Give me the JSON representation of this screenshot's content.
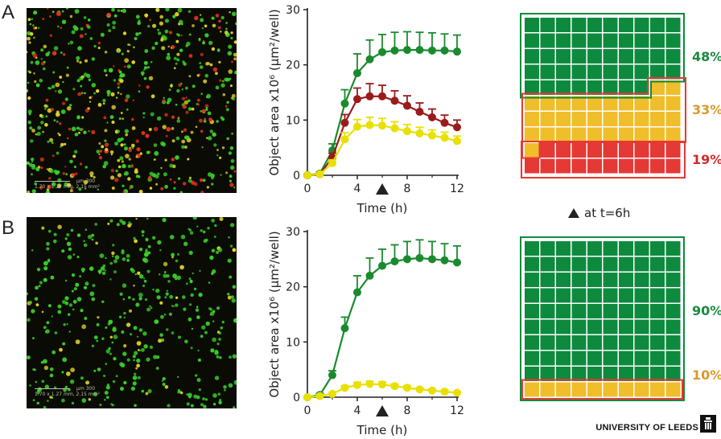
{
  "panels": [
    {
      "letter": "A"
    },
    {
      "letter": "B"
    }
  ],
  "micrographs": [
    {
      "scale_unit": "µm",
      "scale_value": "300",
      "size_text": "1.70 x 1.27 mm, 2.15 mm²",
      "density": 620,
      "ratio": {
        "green": 0.48,
        "yellow": 0.33,
        "red": 0.19
      }
    },
    {
      "scale_unit": "µm",
      "scale_value": "300",
      "size_text": "1.70 x 1.27 mm, 2.15 mm²",
      "density": 430,
      "ratio": {
        "green": 0.9,
        "yellow": 0.1,
        "red": 0.0
      }
    }
  ],
  "chart_data": [
    {
      "type": "line",
      "xlabel": "Time (h)",
      "ylabel": "Object area x10⁶ (µm²/well)",
      "xlim": [
        0,
        12
      ],
      "ylim": [
        0,
        30
      ],
      "xticks": [
        0,
        4,
        8,
        12
      ],
      "yticks": [
        0,
        10,
        20,
        30
      ],
      "marker_time": 6,
      "x": [
        0,
        1,
        2,
        3,
        4,
        5,
        6,
        7,
        8,
        9,
        10,
        11,
        12
      ],
      "series": [
        {
          "color": "#1a8a2e",
          "values": [
            0,
            0.3,
            4.5,
            13,
            18.5,
            21,
            22.3,
            22.6,
            22.7,
            22.7,
            22.6,
            22.6,
            22.4
          ],
          "errors": [
            0,
            0.3,
            1.2,
            2.5,
            3.5,
            3.5,
            3.2,
            3.3,
            3.3,
            3.2,
            3.2,
            3.0,
            3.0
          ]
        },
        {
          "color": "#9b1a1a",
          "values": [
            0,
            0.2,
            3.2,
            9.5,
            13.8,
            14.3,
            14.3,
            13.5,
            12.6,
            11.5,
            10.5,
            9.5,
            8.7
          ],
          "errors": [
            0,
            0.2,
            0.8,
            1.5,
            2.0,
            2.3,
            2.0,
            1.8,
            1.8,
            1.6,
            1.5,
            1.4,
            1.3
          ]
        },
        {
          "color": "#e8e000",
          "values": [
            0,
            0.2,
            2.2,
            6.5,
            8.8,
            9.1,
            9.0,
            8.5,
            8.0,
            7.6,
            7.2,
            6.8,
            6.2
          ],
          "errors": [
            0,
            0.2,
            0.6,
            1.2,
            1.3,
            1.4,
            1.3,
            1.2,
            1.2,
            1.1,
            1.0,
            1.0,
            0.9
          ]
        }
      ]
    },
    {
      "type": "line",
      "xlabel": "Time (h)",
      "ylabel": "Object area x10⁶ (µm²/well)",
      "xlim": [
        0,
        12
      ],
      "ylim": [
        0,
        30
      ],
      "xticks": [
        0,
        4,
        8,
        12
      ],
      "yticks": [
        0,
        10,
        20,
        30
      ],
      "marker_time": 6,
      "x": [
        0,
        1,
        2,
        3,
        4,
        5,
        6,
        7,
        8,
        9,
        10,
        11,
        12
      ],
      "series": [
        {
          "color": "#1a8a2e",
          "values": [
            0,
            0.4,
            4.0,
            12.5,
            19.0,
            22.0,
            23.8,
            24.6,
            25.0,
            25.2,
            25.0,
            24.8,
            24.4
          ],
          "errors": [
            0,
            0.3,
            0.8,
            2.0,
            3.0,
            3.2,
            3.0,
            3.0,
            3.2,
            3.3,
            3.2,
            3.0,
            3.0
          ]
        },
        {
          "color": "#e8e000",
          "values": [
            0,
            0.2,
            0.6,
            1.7,
            2.2,
            2.4,
            2.3,
            2.0,
            1.7,
            1.4,
            1.2,
            1.0,
            0.8
          ],
          "errors": [
            0,
            0.1,
            0.2,
            0.4,
            0.5,
            0.5,
            0.5,
            0.4,
            0.4,
            0.3,
            0.3,
            0.3,
            0.2
          ]
        }
      ]
    }
  ],
  "waffles": [
    {
      "green_pct": 48,
      "yellow_pct": 33,
      "red_pct": 19,
      "green_label": "48%",
      "yellow_label": "33%",
      "red_label": "19%",
      "colors": {
        "green": "#0e8a3e",
        "yellow": "#f0bd2b",
        "red": "#e53935",
        "green_text": "#1a8a3e",
        "yellow_text": "#d89a2a",
        "red_text": "#d42a2a"
      }
    },
    {
      "green_pct": 90,
      "yellow_pct": 10,
      "red_pct": 0,
      "green_label": "90%",
      "yellow_label": "10%",
      "colors": {
        "green": "#0e8a3e",
        "yellow": "#f0bd2b",
        "red": "#e53935",
        "green_text": "#1a8a3e",
        "yellow_text": "#d89a2a",
        "red_text": "#d42a2a"
      }
    }
  ],
  "timepoint_note": "at t=6h",
  "logo": {
    "text": "UNIVERSITY OF LEEDS",
    "icon": "leeds-tower-icon"
  }
}
